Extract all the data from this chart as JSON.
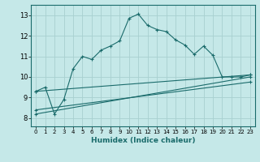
{
  "title": "",
  "xlabel": "Humidex (Indice chaleur)",
  "bg_color": "#c5e8e8",
  "grid_color": "#a8d0d0",
  "line_color": "#1a6b6b",
  "xlim": [
    -0.5,
    23.5
  ],
  "ylim": [
    7.6,
    13.5
  ],
  "xticks": [
    0,
    1,
    2,
    3,
    4,
    5,
    6,
    7,
    8,
    9,
    10,
    11,
    12,
    13,
    14,
    15,
    16,
    17,
    18,
    19,
    20,
    21,
    22,
    23
  ],
  "yticks": [
    8,
    9,
    10,
    11,
    12,
    13
  ],
  "series1_x": [
    0,
    1,
    2,
    3,
    4,
    5,
    6,
    7,
    8,
    9,
    10,
    11,
    12,
    13,
    14,
    15,
    16,
    17,
    18,
    19,
    20,
    21,
    22,
    23
  ],
  "series1_y": [
    9.3,
    9.5,
    8.2,
    8.9,
    10.4,
    11.0,
    10.85,
    11.3,
    11.5,
    11.75,
    12.85,
    13.05,
    12.5,
    12.3,
    12.2,
    11.8,
    11.55,
    11.1,
    11.5,
    11.05,
    10.0,
    10.0,
    10.0,
    10.1
  ],
  "series2_x": [
    0,
    23
  ],
  "series2_y": [
    9.3,
    10.1
  ],
  "series3_x": [
    0,
    23
  ],
  "series3_y": [
    8.2,
    10.0
  ],
  "series4_x": [
    0,
    23
  ],
  "series4_y": [
    8.4,
    9.75
  ]
}
